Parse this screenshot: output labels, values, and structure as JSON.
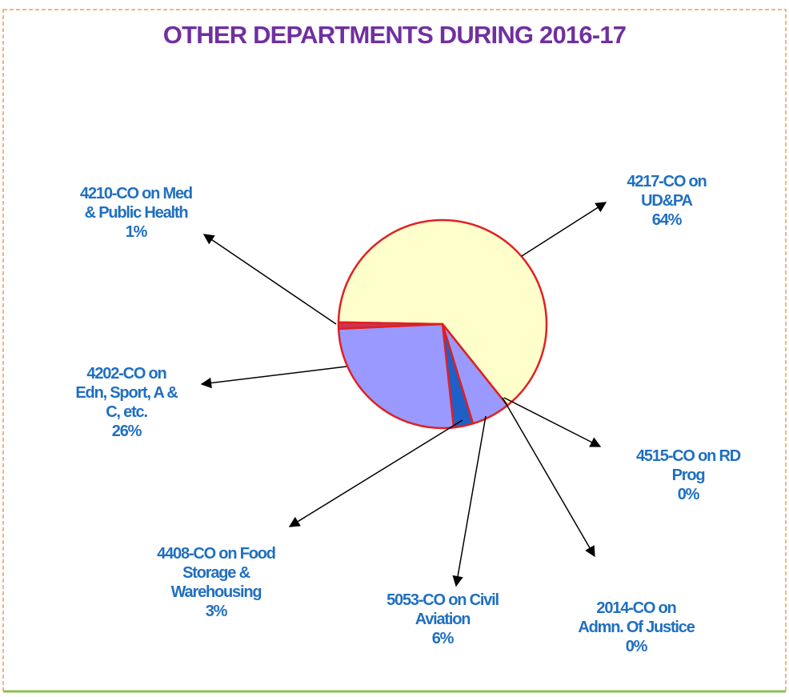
{
  "chart_data": {
    "type": "pie",
    "title": "OTHER DEPARTMENTS DURING 2016-17",
    "categories": [
      "4217-CO on\nUD&PA",
      "4515-CO on RD\nProg",
      "2014-CO on\nAdmn. Of Justice",
      "5053-CO on Civil\nAviation",
      "4408-CO on Food\nStorage &\nWarehousing",
      "4202-CO on\nEdn, Sport, A &\nC, etc.",
      "4210-CO on Med\n& Public Health"
    ],
    "values": [
      64,
      0,
      0,
      6,
      3,
      26,
      1
    ],
    "value_labels": [
      "64%",
      "0%",
      "0%",
      "6%",
      "3%",
      "26%",
      "1%"
    ],
    "colors": [
      "#ffffcc",
      "#9999ff",
      "#9999ff",
      "#9999ff",
      "#1f5fc8",
      "#9999ff",
      "#cc3355"
    ],
    "edge_color": "#e02020"
  }
}
